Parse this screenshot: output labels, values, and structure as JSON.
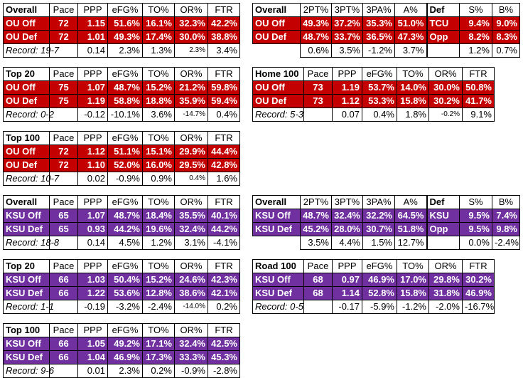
{
  "columns": {
    "pace": "Pace",
    "ppp": "PPP",
    "efg": "eFG%",
    "to": "TO%",
    "or": "OR%",
    "ftr": "FTR",
    "p2": "2PT%",
    "p3": "3PT%",
    "p3a": "3PA%",
    "a": "A%",
    "def": "Def",
    "s": "S%",
    "b": "B%"
  },
  "ou": {
    "overall": {
      "title": "Overall",
      "rows": [
        {
          "label": "OU Off",
          "pace": "72",
          "ppp": "1.15",
          "efg": "51.6%",
          "to": "16.1%",
          "or": "32.3%",
          "ftr": "42.2%"
        },
        {
          "label": "OU Def",
          "pace": "72",
          "ppp": "1.01",
          "efg": "49.3%",
          "to": "17.4%",
          "or": "30.0%",
          "ftr": "38.8%"
        }
      ],
      "record": {
        "label": "Record: 19-7",
        "pace": "",
        "ppp": "0.14",
        "efg": "2.3%",
        "to": "1.3%",
        "or": "2.3%",
        "ftr": "3.4%"
      }
    },
    "shooting": {
      "title": "Overall",
      "rows": [
        {
          "label": "OU Off",
          "p2": "49.3%",
          "p3": "37.2%",
          "p3a": "35.3%",
          "a": "51.0%",
          "def": "TCU",
          "s": "9.4%",
          "b": "9.0%"
        },
        {
          "label": "OU Def",
          "p2": "48.7%",
          "p3": "33.7%",
          "p3a": "36.5%",
          "a": "47.3%",
          "def": "Opp",
          "s": "8.2%",
          "b": "8.3%"
        }
      ],
      "record": {
        "p2": "0.6%",
        "p3": "3.5%",
        "p3a": "-1.2%",
        "a": "3.7%",
        "s": "1.2%",
        "b": "0.7%"
      }
    },
    "top20": {
      "title": "Top 20",
      "rows": [
        {
          "label": "OU Off",
          "pace": "75",
          "ppp": "1.07",
          "efg": "48.7%",
          "to": "15.2%",
          "or": "21.2%",
          "ftr": "59.8%"
        },
        {
          "label": "OU Def",
          "pace": "75",
          "ppp": "1.19",
          "efg": "58.8%",
          "to": "18.8%",
          "or": "35.9%",
          "ftr": "59.4%"
        }
      ],
      "record": {
        "label": "Record: 0-2",
        "pace": "",
        "ppp": "-0.12",
        "efg": "-10.1%",
        "to": "3.6%",
        "or": "-14.7%",
        "ftr": "0.4%"
      }
    },
    "home100": {
      "title": "Home 100",
      "rows": [
        {
          "label": "OU Off",
          "pace": "73",
          "ppp": "1.19",
          "efg": "53.7%",
          "to": "14.0%",
          "or": "30.0%",
          "ftr": "50.8%"
        },
        {
          "label": "OU Def",
          "pace": "73",
          "ppp": "1.12",
          "efg": "53.3%",
          "to": "15.8%",
          "or": "30.2%",
          "ftr": "41.7%"
        }
      ],
      "record": {
        "label": "Record: 5-3",
        "pace": "",
        "ppp": "0.07",
        "efg": "0.4%",
        "to": "1.8%",
        "or": "-0.2%",
        "ftr": "9.1%"
      }
    },
    "top100": {
      "title": "Top 100",
      "rows": [
        {
          "label": "OU Off",
          "pace": "72",
          "ppp": "1.12",
          "efg": "51.1%",
          "to": "15.1%",
          "or": "29.9%",
          "ftr": "44.4%"
        },
        {
          "label": "OU Def",
          "pace": "72",
          "ppp": "1.10",
          "efg": "52.0%",
          "to": "16.0%",
          "or": "29.5%",
          "ftr": "42.8%"
        }
      ],
      "record": {
        "label": "Record: 10-7",
        "pace": "",
        "ppp": "0.02",
        "efg": "-0.9%",
        "to": "0.9%",
        "or": "0.4%",
        "ftr": "1.6%"
      }
    }
  },
  "ksu": {
    "overall": {
      "title": "Overall",
      "rows": [
        {
          "label": "KSU Off",
          "pace": "65",
          "ppp": "1.07",
          "efg": "48.7%",
          "to": "18.4%",
          "or": "35.5%",
          "ftr": "40.1%"
        },
        {
          "label": "KSU Def",
          "pace": "65",
          "ppp": "0.93",
          "efg": "44.2%",
          "to": "19.6%",
          "or": "32.4%",
          "ftr": "44.2%"
        }
      ],
      "record": {
        "label": "Record: 18-8",
        "pace": "",
        "ppp": "0.14",
        "efg": "4.5%",
        "to": "1.2%",
        "or": "3.1%",
        "ftr": "-4.1%"
      }
    },
    "shooting": {
      "title": "Overall",
      "rows": [
        {
          "label": "KSU Off",
          "p2": "48.7%",
          "p3": "32.4%",
          "p3a": "32.2%",
          "a": "64.5%",
          "def": "KSU",
          "s": "9.5%",
          "b": "7.4%"
        },
        {
          "label": "KSU Def",
          "p2": "45.2%",
          "p3": "28.0%",
          "p3a": "30.7%",
          "a": "51.8%",
          "def": "Opp",
          "s": "9.5%",
          "b": "9.8%"
        }
      ],
      "record": {
        "p2": "3.5%",
        "p3": "4.4%",
        "p3a": "1.5%",
        "a": "12.7%",
        "s": "0.0%",
        "b": "-2.4%"
      }
    },
    "top20": {
      "title": "Top 20",
      "rows": [
        {
          "label": "KSU Off",
          "pace": "66",
          "ppp": "1.03",
          "efg": "50.4%",
          "to": "15.2%",
          "or": "24.6%",
          "ftr": "42.3%"
        },
        {
          "label": "KSU Def",
          "pace": "66",
          "ppp": "1.22",
          "efg": "53.6%",
          "to": "12.8%",
          "or": "38.6%",
          "ftr": "42.1%"
        }
      ],
      "record": {
        "label": "Record: 1-1",
        "pace": "",
        "ppp": "-0.19",
        "efg": "-3.2%",
        "to": "-2.4%",
        "or": "-14.0%",
        "ftr": "0.2%"
      }
    },
    "road100": {
      "title": "Road 100",
      "rows": [
        {
          "label": "KSU Off",
          "pace": "68",
          "ppp": "0.97",
          "efg": "46.9%",
          "to": "17.0%",
          "or": "29.8%",
          "ftr": "30.2%"
        },
        {
          "label": "KSU Def",
          "pace": "68",
          "ppp": "1.14",
          "efg": "52.8%",
          "to": "15.8%",
          "or": "31.8%",
          "ftr": "46.9%"
        }
      ],
      "record": {
        "label": "Record: 0-5",
        "pace": "",
        "ppp": "-0.17",
        "efg": "-5.9%",
        "to": "-1.2%",
        "or": "-2.0%",
        "ftr": "-16.7%"
      }
    },
    "top100": {
      "title": "Top 100",
      "rows": [
        {
          "label": "KSU Off",
          "pace": "66",
          "ppp": "1.05",
          "efg": "49.2%",
          "to": "17.1%",
          "or": "32.4%",
          "ftr": "42.5%"
        },
        {
          "label": "KSU Def",
          "pace": "66",
          "ppp": "1.04",
          "efg": "46.9%",
          "to": "17.3%",
          "or": "33.3%",
          "ftr": "45.3%"
        }
      ],
      "record": {
        "label": "Record: 9-6",
        "pace": "",
        "ppp": "0.01",
        "efg": "2.3%",
        "to": "0.2%",
        "or": "-0.9%",
        "ftr": "-2.8%"
      }
    }
  }
}
